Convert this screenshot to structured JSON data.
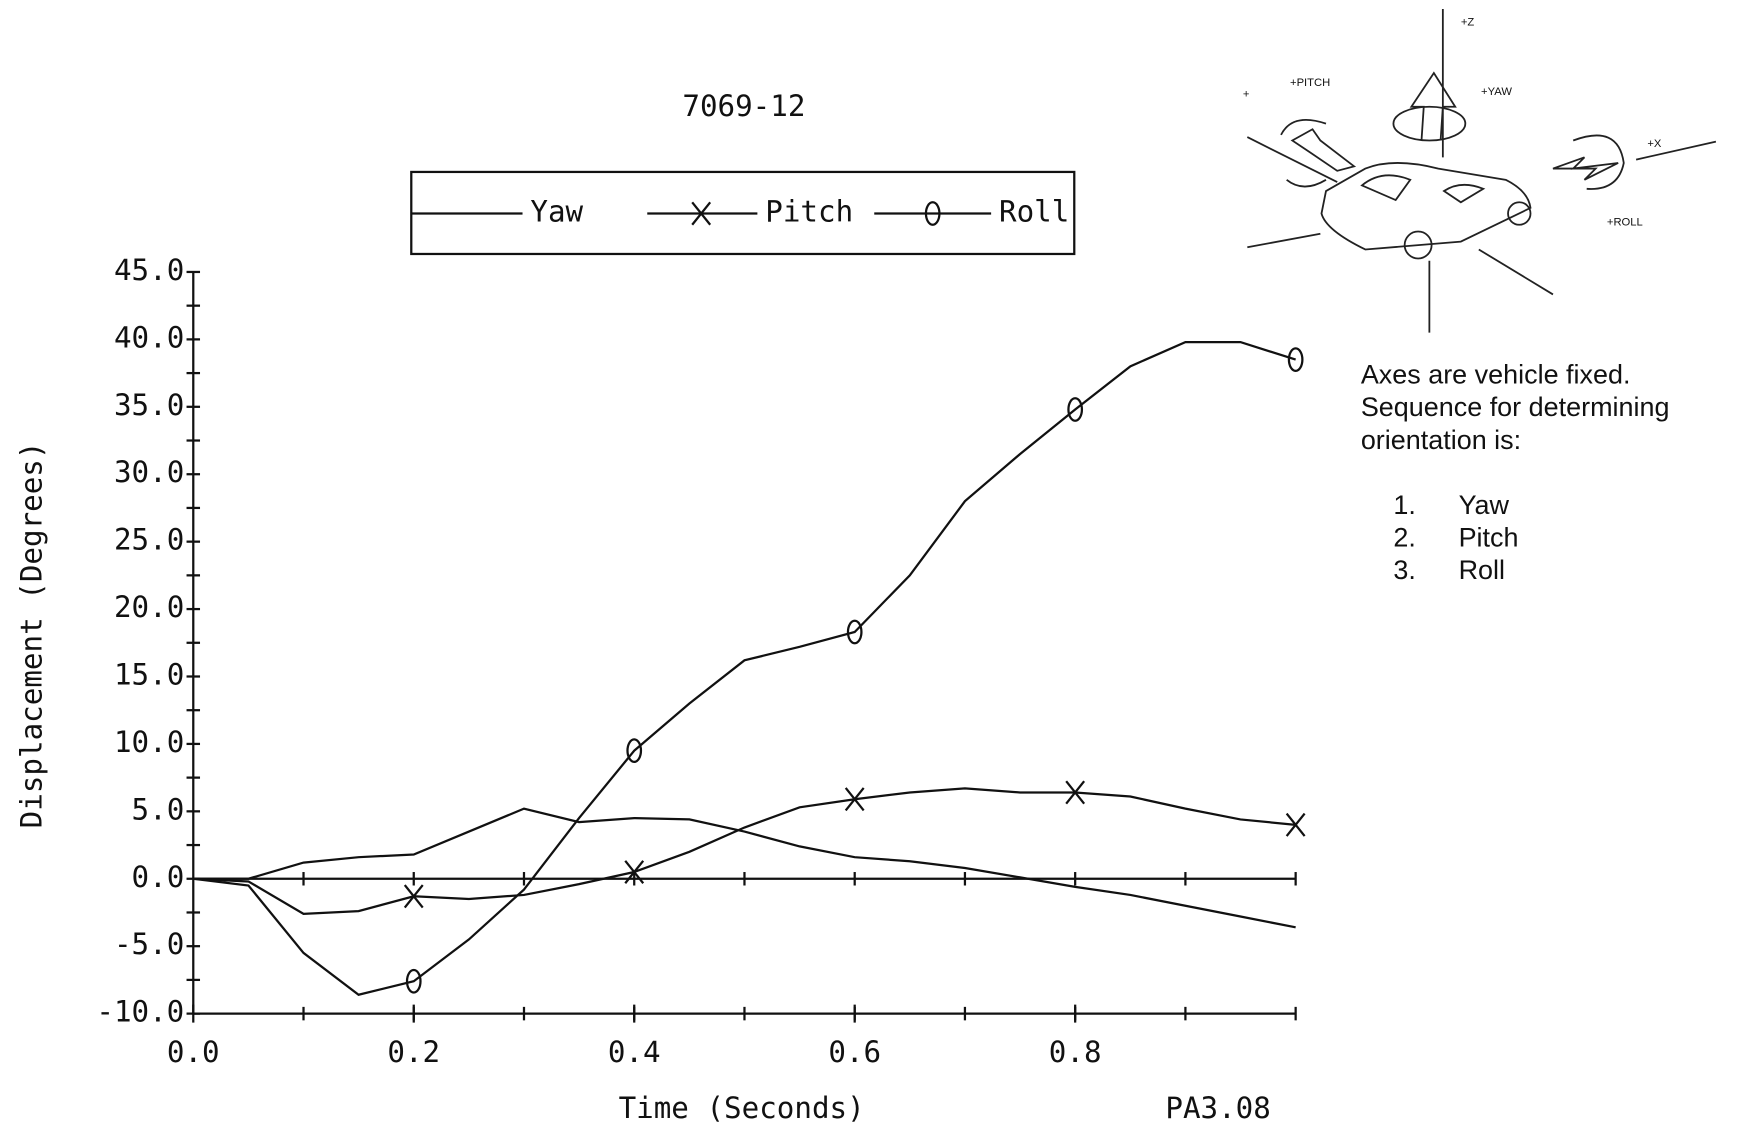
{
  "chart_data": {
    "type": "line",
    "title": "7069-12",
    "x_label": "Time  (Seconds)",
    "y_label": "Displacement  (Degrees)",
    "annotation": "PA3.08",
    "x": [
      0,
      0.05,
      0.1,
      0.15,
      0.2,
      0.25,
      0.3,
      0.35,
      0.4,
      0.45,
      0.5,
      0.55,
      0.6,
      0.65,
      0.7,
      0.75,
      0.8,
      0.85,
      0.9,
      0.95,
      1.0
    ],
    "series": [
      {
        "name": "Yaw",
        "color": "#111111",
        "values": [
          0,
          0,
          1.2,
          1.6,
          1.8,
          3.5,
          5.2,
          4.2,
          4.5,
          4.4,
          3.5,
          2.4,
          1.6,
          1.3,
          0.8,
          0.1,
          -0.6,
          -1.2,
          -2.0,
          -2.8,
          -3.6
        ]
      },
      {
        "name": "Pitch",
        "color": "#111111",
        "values": [
          0,
          -0.2,
          -2.6,
          -2.4,
          -1.3,
          -1.5,
          -1.2,
          -0.4,
          0.5,
          2.0,
          3.8,
          5.3,
          5.9,
          6.4,
          6.7,
          6.4,
          6.4,
          6.1,
          5.2,
          4.4,
          4.0
        ]
      },
      {
        "name": "Roll",
        "color": "#111111",
        "values": [
          0,
          -0.5,
          -5.5,
          -8.6,
          -7.6,
          -4.5,
          -0.8,
          4.5,
          9.5,
          13.0,
          16.2,
          17.2,
          18.3,
          22.5,
          28.0,
          31.5,
          34.8,
          38.0,
          39.8,
          39.8,
          38.5
        ]
      }
    ],
    "xlim": [
      0,
      1.0
    ],
    "xticks": [
      {
        "value": 0,
        "label": "0.0"
      },
      0.2,
      0.4,
      0.6,
      0.8
    ],
    "ylim": [
      -10,
      45
    ],
    "yticks": [
      {
        "value": -10,
        "label": "-10.0"
      },
      {
        "value": -5,
        "label": "-5.0"
      },
      {
        "value": 0,
        "label": "0.0"
      },
      {
        "value": 5,
        "label": "5.0"
      },
      {
        "value": 10,
        "label": "10.0"
      },
      {
        "value": 15,
        "label": "15.0"
      },
      {
        "value": 20,
        "label": "20.0"
      },
      {
        "value": 25,
        "label": "25.0"
      },
      {
        "value": 30,
        "label": "30.0"
      },
      {
        "value": 35,
        "label": "35.0"
      },
      {
        "value": 40,
        "label": "40.0"
      },
      {
        "value": 45,
        "label": "45.0"
      }
    ],
    "diagram_labels": {
      "z": "+Z",
      "pitch": "+PITCH",
      "yaw": "+YAW",
      "x": "+X",
      "roll": "+ROLL",
      "y": "+"
    },
    "note": [
      "Axes are vehicle fixed.",
      "Sequence for determining",
      "orientation is:"
    ],
    "sequence": [
      {
        "number": "1.",
        "label": "Yaw"
      },
      {
        "number": "2.",
        "label": "Pitch"
      },
      {
        "number": "3.",
        "label": "Roll"
      }
    ]
  }
}
